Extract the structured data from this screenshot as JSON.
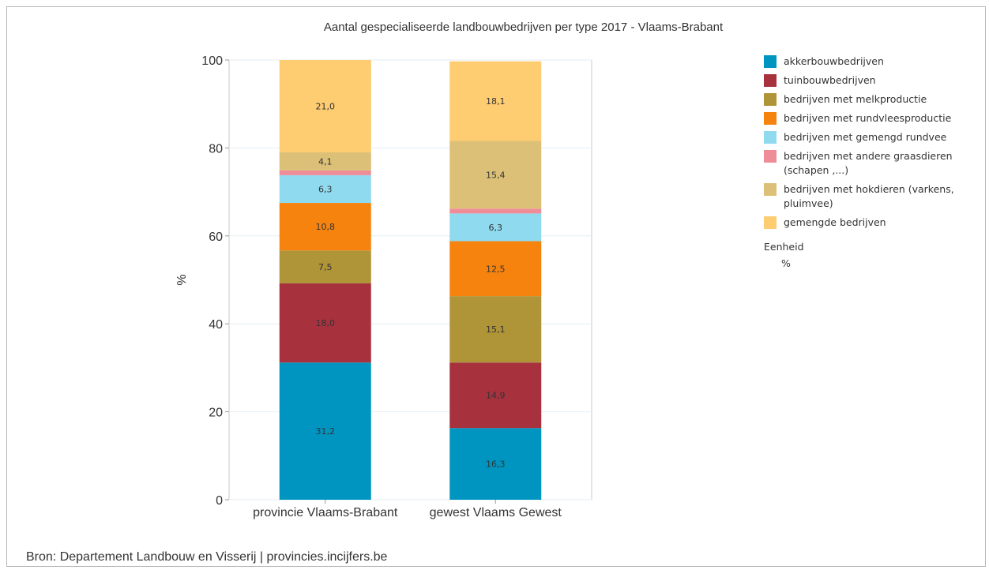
{
  "chart_data": {
    "type": "bar",
    "stacked": true,
    "title": "Aantal gespecialiseerde landbouwbedrijven per type 2017 - Vlaams-Brabant",
    "ylabel": "%",
    "xlabel": "",
    "ylim": [
      0,
      100
    ],
    "yticks": [
      0,
      20,
      40,
      60,
      80,
      100
    ],
    "grid": true,
    "legend_position": "right",
    "categories": [
      "provincie Vlaams-Brabant",
      "gewest Vlaams Gewest"
    ],
    "series": [
      {
        "name": "akkerbouwbedrijven",
        "color": "#0095c0",
        "values": [
          31.2,
          16.3
        ],
        "labels": [
          "31,2",
          "16,3"
        ]
      },
      {
        "name": "tuinbouwbedrijven",
        "color": "#a8313e",
        "values": [
          18.0,
          14.9
        ],
        "labels": [
          "18,0",
          "14,9"
        ]
      },
      {
        "name": "bedrijven met melkproductie",
        "color": "#b09438",
        "values": [
          7.5,
          15.1
        ],
        "labels": [
          "7,5",
          "15,1"
        ]
      },
      {
        "name": "bedrijven met rundvleesproductie",
        "color": "#f7830f",
        "values": [
          10.8,
          12.5
        ],
        "labels": [
          "10,8",
          "12,5"
        ]
      },
      {
        "name": "bedrijven met gemengd rundvee",
        "color": "#8fdaef",
        "values": [
          6.3,
          6.3
        ],
        "labels": [
          "6,3",
          "6,3"
        ]
      },
      {
        "name": "bedrijven met andere graasdieren (schapen ,...)",
        "color": "#ee8d97",
        "values": [
          1.1,
          1.1
        ],
        "labels": [
          "",
          ""
        ]
      },
      {
        "name": "bedrijven met hokdieren (varkens, pluimvee)",
        "color": "#dcc077",
        "values": [
          4.1,
          15.4
        ],
        "labels": [
          "4,1",
          "15,4"
        ]
      },
      {
        "name": "gemengde bedrijven",
        "color": "#fecc71",
        "values": [
          21.0,
          18.1
        ],
        "labels": [
          "21,0",
          "18,1"
        ]
      }
    ]
  },
  "legend": {
    "unit_title": "Eenheid",
    "unit_value": "%"
  },
  "source": "Bron: Departement Landbouw en Visserij | provincies.incijfers.be"
}
